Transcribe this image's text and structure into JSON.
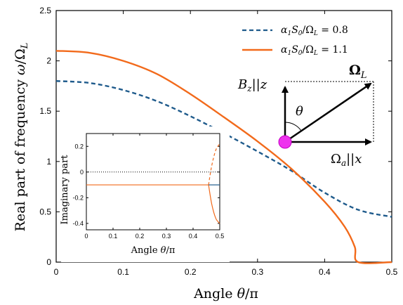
{
  "chart_data": [
    {
      "type": "line",
      "xlabel": "Angle θ/π",
      "ylabel": "Real part of frequency ω/Ω_L",
      "xlim": [
        0,
        0.5
      ],
      "ylim": [
        0,
        2.5
      ],
      "x_ticks": [
        "0",
        "0.1",
        "0.2",
        "0.3",
        "0.4",
        "0.5"
      ],
      "y_ticks": [
        "0",
        "0.5",
        "1",
        "1.5",
        "2",
        "2.5"
      ],
      "legend_position": "top-right",
      "series": [
        {
          "name": "α₁S₀/Ω_L = 0.8",
          "color": "#1f5b8c",
          "style": "dashed",
          "x": [
            0,
            0.05,
            0.1,
            0.15,
            0.2,
            0.25,
            0.3,
            0.35,
            0.4,
            0.45,
            0.5
          ],
          "y": [
            1.8,
            1.78,
            1.71,
            1.6,
            1.45,
            1.28,
            1.1,
            0.91,
            0.69,
            0.52,
            0.45
          ]
        },
        {
          "name": "α₁S₀/Ω_L = 1.1",
          "color": "#f26a1b",
          "style": "solid",
          "x": [
            0,
            0.05,
            0.1,
            0.15,
            0.2,
            0.25,
            0.3,
            0.35,
            0.4,
            0.43,
            0.445,
            0.45,
            0.5
          ],
          "y": [
            2.1,
            2.08,
            2.0,
            1.87,
            1.67,
            1.44,
            1.2,
            0.93,
            0.6,
            0.35,
            0.15,
            0.0,
            0.0
          ]
        }
      ]
    },
    {
      "type": "line",
      "xlabel": "Angle θ/π",
      "ylabel": "Imaginary part",
      "xlim": [
        0,
        0.5
      ],
      "ylim": [
        -0.45,
        0.3
      ],
      "x_ticks": [
        "0",
        "0.1",
        "0.2",
        "0.3",
        "0.4",
        "0.5"
      ],
      "y_ticks": [
        "0.2",
        "0",
        "-0.2",
        "-0.4"
      ],
      "series": [
        {
          "color": "#f26a1b",
          "style": "solid",
          "x": [
            0,
            0.458
          ],
          "y": [
            -0.1,
            -0.1
          ]
        },
        {
          "color": "#f26a1b",
          "style": "dashed",
          "x": [
            0.458,
            0.47,
            0.485,
            0.5
          ],
          "y": [
            -0.1,
            0.05,
            0.17,
            0.22
          ]
        },
        {
          "color": "#f26a1b",
          "style": "solid",
          "x": [
            0.458,
            0.47,
            0.485,
            0.5
          ],
          "y": [
            -0.1,
            -0.25,
            -0.36,
            -0.4
          ]
        },
        {
          "color": "#1f5b8c",
          "style": "solid",
          "x": [
            0.458,
            0.5
          ],
          "y": [
            -0.1,
            -0.1
          ]
        },
        {
          "color": "#000000",
          "style": "dotted",
          "x": [
            0,
            0.5
          ],
          "y": [
            0,
            0
          ]
        }
      ]
    }
  ],
  "diagram": {
    "bz_label": "B_z||z",
    "omega_l_label": "Ω_L",
    "theta_label": "θ",
    "omega_a_label": "Ω_a||x"
  }
}
